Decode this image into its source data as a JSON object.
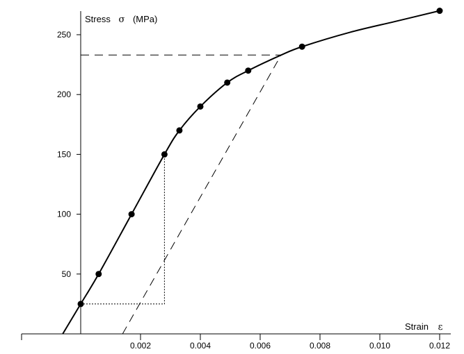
{
  "chart_data": {
    "type": "line",
    "xlabel": "Strain",
    "xsymbol": "ε",
    "ylabel": "Stress",
    "ysymbol": "σ",
    "yunit": "(MPa)",
    "x_ticks": [
      {
        "value": 0.002,
        "label": "0.002"
      },
      {
        "value": 0.004,
        "label": "0.004"
      },
      {
        "value": 0.006,
        "label": "0.006"
      },
      {
        "value": 0.008,
        "label": "0.008"
      },
      {
        "value": 0.01,
        "label": "0.010"
      },
      {
        "value": 0.012,
        "label": "0.012"
      }
    ],
    "y_ticks": [
      {
        "value": 50,
        "label": "50"
      },
      {
        "value": 100,
        "label": "100"
      },
      {
        "value": 150,
        "label": "150"
      },
      {
        "value": 200,
        "label": "200"
      },
      {
        "value": 250,
        "label": "250"
      }
    ],
    "xlim": [
      -0.002,
      0.0124
    ],
    "ylim": [
      0,
      270
    ],
    "grid": false,
    "points": [
      {
        "x": 0.0,
        "y": 25
      },
      {
        "x": 0.0006,
        "y": 50
      },
      {
        "x": 0.0017,
        "y": 100
      },
      {
        "x": 0.0028,
        "y": 150
      },
      {
        "x": 0.0033,
        "y": 170
      },
      {
        "x": 0.004,
        "y": 190
      },
      {
        "x": 0.0049,
        "y": 210
      },
      {
        "x": 0.0056,
        "y": 220
      },
      {
        "x": 0.0074,
        "y": 240
      },
      {
        "x": 0.012,
        "y": 270
      }
    ],
    "curve": [
      {
        "x": -0.0006,
        "y": 0
      },
      {
        "x": 0.0,
        "y": 25
      },
      {
        "x": 0.0006,
        "y": 50
      },
      {
        "x": 0.0017,
        "y": 100
      },
      {
        "x": 0.0028,
        "y": 150
      },
      {
        "x": 0.0033,
        "y": 170
      },
      {
        "x": 0.004,
        "y": 190
      },
      {
        "x": 0.0049,
        "y": 210
      },
      {
        "x": 0.0056,
        "y": 220
      },
      {
        "x": 0.0067,
        "y": 233
      },
      {
        "x": 0.0074,
        "y": 240
      },
      {
        "x": 0.009,
        "y": 252
      },
      {
        "x": 0.0105,
        "y": 261
      },
      {
        "x": 0.012,
        "y": 270
      }
    ],
    "offset_line": {
      "x1": 0.0014,
      "y1": 0,
      "x2": 0.0067,
      "y2": 233
    },
    "yield_line": {
      "x1": 0.0,
      "y1": 233,
      "x2": 0.0067,
      "y2": 233
    },
    "dotted_path": [
      {
        "x": 0.0,
        "y": 25
      },
      {
        "x": 0.0028,
        "y": 25
      },
      {
        "x": 0.0028,
        "y": 150
      }
    ]
  }
}
